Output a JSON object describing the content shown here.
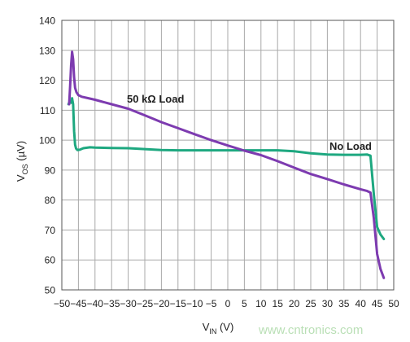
{
  "chart_data": {
    "type": "line",
    "xlabel": {
      "main": "V",
      "sub": "IN",
      "unit": " (V)"
    },
    "ylabel": {
      "main": "V",
      "sub": "OS",
      "unit": " (µV)"
    },
    "xlim": [
      -50,
      50
    ],
    "ylim": [
      50,
      140
    ],
    "xticks": [
      -50,
      -45,
      -40,
      -35,
      -30,
      -25,
      -20,
      -15,
      -10,
      -5,
      0,
      5,
      10,
      15,
      20,
      25,
      30,
      35,
      40,
      45,
      50
    ],
    "yticks": [
      50,
      60,
      70,
      80,
      90,
      100,
      110,
      120,
      130,
      140
    ],
    "xtick_labels": [
      "−50",
      "−45",
      "−40",
      "−35",
      "−30",
      "−25",
      "−20",
      "−15",
      "−10",
      "−5",
      "0",
      "5",
      "10",
      "15",
      "20",
      "25",
      "30",
      "35",
      "40",
      "45",
      "50"
    ],
    "ytick_labels": [
      "50",
      "60",
      "70",
      "80",
      "90",
      "100",
      "110",
      "120",
      "130",
      "140"
    ],
    "grid": true,
    "series": [
      {
        "name": "No Load",
        "color": "#1ea880",
        "x": [
          -48,
          -47.6,
          -47.2,
          -46.9,
          -46.6,
          -46.3,
          -46,
          -45.7,
          -45.3,
          -44.6,
          -43.5,
          -41.5,
          -40,
          -35,
          -30,
          -25,
          -20,
          -15,
          -10,
          -5,
          0,
          5,
          10,
          15,
          20,
          25,
          30,
          35,
          40,
          42,
          43,
          44,
          45,
          46,
          47
        ],
        "values": [
          112,
          113,
          112.5,
          114,
          112,
          103,
          98.5,
          97.2,
          96.7,
          96.8,
          97.3,
          97.6,
          97.5,
          97.4,
          97.3,
          97,
          96.7,
          96.6,
          96.6,
          96.6,
          96.6,
          96.6,
          96.6,
          96.6,
          96.3,
          95.6,
          95.2,
          95.1,
          95.1,
          95.2,
          94.8,
          82,
          71,
          68.5,
          67
        ]
      },
      {
        "name": "50 kΩ Load",
        "color": "#7d3bb0",
        "x": [
          -47.8,
          -47.5,
          -47.2,
          -46.9,
          -46.6,
          -46.3,
          -46,
          -45.6,
          -45,
          -44,
          -42,
          -40,
          -35,
          -30,
          -25,
          -20,
          -15,
          -10,
          -5,
          0,
          5,
          10,
          15,
          20,
          25,
          30,
          35,
          40,
          42,
          43,
          44,
          45,
          46,
          47
        ],
        "values": [
          112,
          118,
          125,
          129.5,
          127,
          121,
          117.5,
          116,
          115,
          114.5,
          114,
          113.5,
          112,
          110.5,
          108.3,
          106,
          104,
          102,
          100,
          98.2,
          96.5,
          95,
          93,
          90.8,
          88.7,
          87,
          85.2,
          83.6,
          83,
          82.5,
          74,
          62,
          57,
          54
        ]
      }
    ],
    "annotations": [
      "50 kΩ Load",
      "No Load"
    ]
  },
  "watermark": "www.cntronics.com"
}
